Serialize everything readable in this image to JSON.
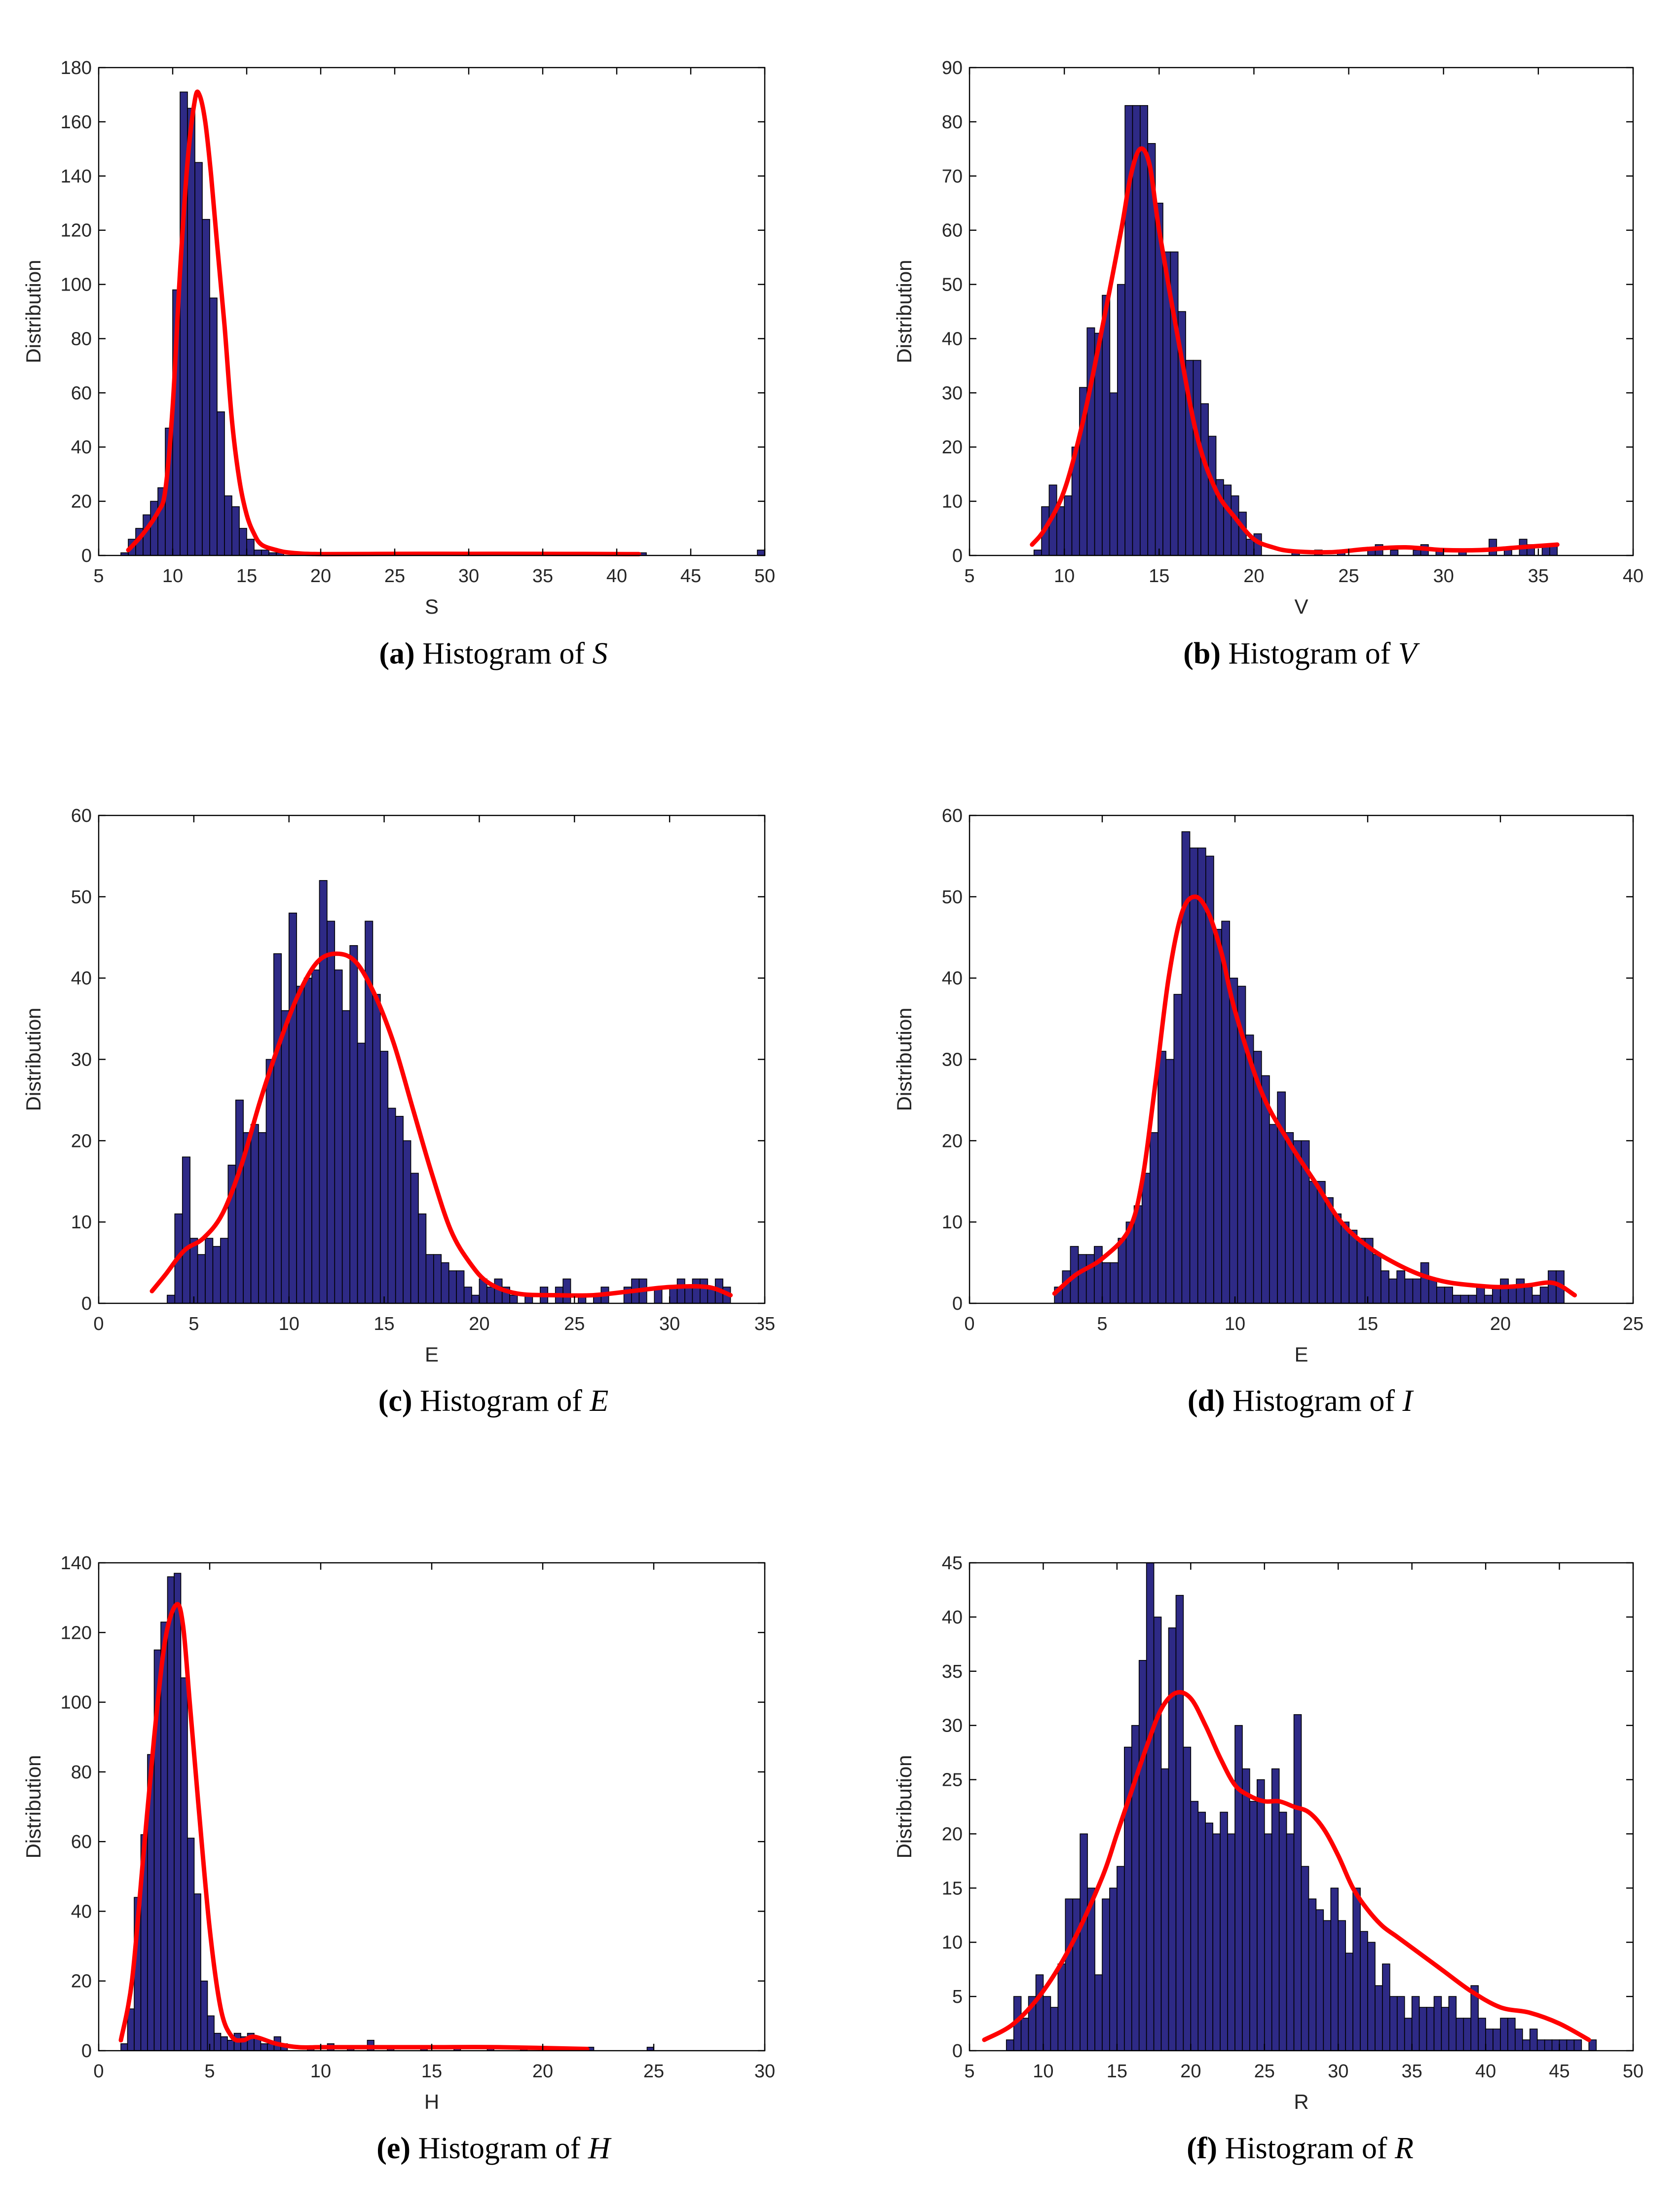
{
  "figure": {
    "bar_color": "#2E2A86",
    "bar_edge_color": "#000000",
    "curve_color": "#FF0000",
    "panel_bg": "#FFFFFF"
  },
  "chart_data": [
    {
      "id": "a",
      "type": "bar",
      "title": "",
      "xlabel": "S",
      "ylabel": "Distribution",
      "xlim": [
        5,
        50
      ],
      "ylim": [
        0,
        180
      ],
      "xticks": [
        5,
        10,
        15,
        20,
        25,
        30,
        35,
        40,
        45,
        50
      ],
      "yticks": [
        0,
        20,
        40,
        60,
        80,
        100,
        120,
        140,
        160,
        180
      ],
      "caption": {
        "label": "(a)",
        "text": "Histogram of",
        "var": "S"
      },
      "bars": {
        "bin_width": 0.5,
        "centers": [
          6.75,
          7.25,
          7.75,
          8.25,
          8.75,
          9.25,
          9.75,
          10.25,
          10.75,
          11.25,
          11.75,
          12.25,
          12.75,
          13.25,
          13.75,
          14.25,
          14.75,
          15.25,
          15.75,
          16.25,
          16.75,
          17.25,
          20.25,
          23.25,
          27.25,
          30.75,
          33.25,
          35.25,
          41.75,
          49.75
        ],
        "values": [
          1,
          6,
          10,
          15,
          20,
          25,
          47,
          98,
          171,
          165,
          145,
          124,
          95,
          53,
          22,
          18,
          10,
          6,
          2,
          2,
          1,
          1,
          1,
          1,
          1,
          1,
          1,
          1,
          1,
          2
        ]
      },
      "curve": {
        "x": [
          7,
          8,
          9,
          9.5,
          10,
          10.5,
          11,
          11.5,
          11.8,
          12.2,
          12.6,
          13,
          13.5,
          14,
          14.5,
          15,
          15.5,
          16,
          17,
          18,
          20,
          25,
          30,
          35,
          41.5
        ],
        "y": [
          2,
          8,
          16,
          24,
          55,
          105,
          145,
          168,
          170,
          160,
          140,
          115,
          85,
          50,
          28,
          15,
          8,
          4,
          2,
          1,
          0.5,
          0.6,
          0.6,
          0.6,
          0.5
        ]
      }
    },
    {
      "id": "b",
      "type": "bar",
      "title": "",
      "xlabel": "V",
      "ylabel": "Distribution",
      "xlim": [
        5,
        40
      ],
      "ylim": [
        0,
        90
      ],
      "xticks": [
        5,
        10,
        15,
        20,
        25,
        30,
        35,
        40
      ],
      "yticks": [
        0,
        10,
        20,
        30,
        40,
        50,
        60,
        70,
        80,
        90
      ],
      "caption": {
        "label": "(b)",
        "text": "Histogram of",
        "var": "V"
      },
      "bars": {
        "bin_width": 0.4,
        "centers": [
          8.6,
          9.0,
          9.4,
          9.8,
          10.2,
          10.6,
          11.0,
          11.4,
          11.8,
          12.2,
          12.6,
          13.0,
          13.4,
          13.8,
          14.2,
          14.6,
          15.0,
          15.4,
          15.8,
          16.2,
          16.6,
          17.0,
          17.4,
          17.8,
          18.2,
          18.6,
          19.0,
          19.4,
          19.8,
          20.2,
          22.2,
          23.4,
          24.6,
          26.2,
          26.6,
          27.4,
          28.6,
          29.0,
          29.8,
          31.0,
          32.6,
          33.4,
          34.2,
          34.6,
          35.4,
          35.8
        ],
        "values": [
          1,
          9,
          13,
          9,
          11,
          20,
          31,
          42,
          41,
          48,
          30,
          50,
          83,
          83,
          83,
          76,
          65,
          56,
          56,
          45,
          36,
          36,
          28,
          22,
          14,
          13,
          11,
          8,
          3,
          4,
          1,
          1,
          1,
          1,
          2,
          1,
          1,
          2,
          1,
          1,
          3,
          1,
          3,
          2,
          2,
          2
        ]
      },
      "curve": {
        "x": [
          8.3,
          9,
          10,
          11,
          12,
          13,
          13.5,
          14,
          14.5,
          15,
          16,
          17,
          18,
          19,
          20,
          21,
          22,
          24,
          26,
          28,
          30,
          32,
          34,
          36
        ],
        "y": [
          2,
          5,
          12,
          25,
          42,
          60,
          70,
          75,
          72,
          60,
          40,
          22,
          12,
          7,
          3,
          1.5,
          0.8,
          0.6,
          1.2,
          1.5,
          1,
          1,
          1.5,
          2
        ]
      }
    },
    {
      "id": "c",
      "type": "bar",
      "title": "",
      "xlabel": "E",
      "ylabel": "Distribution",
      "xlim": [
        0,
        35
      ],
      "ylim": [
        0,
        60
      ],
      "xticks": [
        0,
        5,
        10,
        15,
        20,
        25,
        30,
        35
      ],
      "yticks": [
        0,
        10,
        20,
        30,
        40,
        50,
        60
      ],
      "caption": {
        "label": "(c)",
        "text": "Histogram of",
        "var": "E"
      },
      "bars": {
        "bin_width": 0.4,
        "centers": [
          3.8,
          4.2,
          4.6,
          5.0,
          5.4,
          5.8,
          6.2,
          6.6,
          7.0,
          7.4,
          7.8,
          8.2,
          8.6,
          9.0,
          9.4,
          9.8,
          10.2,
          10.6,
          11.0,
          11.4,
          11.8,
          12.2,
          12.6,
          13.0,
          13.4,
          13.8,
          14.2,
          14.6,
          15.0,
          15.4,
          15.8,
          16.2,
          16.6,
          17.0,
          17.4,
          17.8,
          18.2,
          18.6,
          19.0,
          19.4,
          19.8,
          20.2,
          20.6,
          21.0,
          21.4,
          21.8,
          22.6,
          23.4,
          24.2,
          24.6,
          25.4,
          26.2,
          26.6,
          27.8,
          28.2,
          28.6,
          29.4,
          30.2,
          30.6,
          31.0,
          31.4,
          31.8,
          32.2,
          32.6,
          33.0
        ],
        "values": [
          1,
          11,
          18,
          8,
          6,
          8,
          7,
          8,
          17,
          25,
          21,
          22,
          21,
          30,
          43,
          36,
          48,
          39,
          40,
          41,
          52,
          47,
          41,
          36,
          44,
          32,
          47,
          38,
          31,
          24,
          23,
          20,
          16,
          11,
          6,
          6,
          5,
          4,
          4,
          2,
          1,
          3,
          2,
          3,
          2,
          1,
          1,
          2,
          2,
          3,
          1,
          1,
          2,
          2,
          3,
          3,
          2,
          2,
          3,
          2,
          3,
          3,
          2,
          3,
          2
        ]
      },
      "curve": {
        "x": [
          2.8,
          3.5,
          4.5,
          5.5,
          6.5,
          7.5,
          8.5,
          9.5,
          10.5,
          11.5,
          12.5,
          13.5,
          14.5,
          15.5,
          16.5,
          17.5,
          18.5,
          19.5,
          20.5,
          22,
          24,
          26,
          28,
          30,
          32,
          33.2
        ],
        "y": [
          1.5,
          3.5,
          6.5,
          8,
          11,
          17,
          25,
          32,
          38,
          42,
          43,
          42,
          38,
          32,
          24,
          16,
          9,
          5,
          2.5,
          1.2,
          1,
          1,
          1.5,
          2,
          2,
          1
        ]
      }
    },
    {
      "id": "d",
      "type": "bar",
      "title": "",
      "xlabel": "E",
      "ylabel": "Distribution",
      "xlim": [
        0,
        25
      ],
      "ylim": [
        0,
        60
      ],
      "xticks": [
        0,
        5,
        10,
        15,
        20,
        25
      ],
      "yticks": [
        0,
        10,
        20,
        30,
        40,
        50,
        60
      ],
      "caption": {
        "label": "(d)",
        "text": "Histogram of",
        "var": "I"
      },
      "bars": {
        "bin_width": 0.3,
        "centers": [
          3.35,
          3.65,
          3.95,
          4.25,
          4.55,
          4.85,
          5.15,
          5.45,
          5.75,
          6.05,
          6.35,
          6.65,
          6.95,
          7.25,
          7.55,
          7.85,
          8.15,
          8.45,
          8.75,
          9.05,
          9.35,
          9.65,
          9.95,
          10.25,
          10.55,
          10.85,
          11.15,
          11.45,
          11.75,
          12.05,
          12.35,
          12.65,
          12.95,
          13.25,
          13.55,
          13.85,
          14.15,
          14.45,
          14.75,
          15.05,
          15.35,
          15.65,
          15.95,
          16.25,
          16.55,
          16.85,
          17.15,
          17.45,
          17.75,
          18.05,
          18.35,
          18.65,
          18.95,
          19.25,
          19.55,
          19.85,
          20.15,
          20.45,
          20.75,
          21.05,
          21.35,
          21.65,
          21.95,
          22.25
        ],
        "values": [
          2,
          4,
          7,
          6,
          6,
          7,
          5,
          5,
          8,
          10,
          12,
          16,
          21,
          31,
          30,
          38,
          58,
          56,
          56,
          55,
          46,
          47,
          40,
          39,
          33,
          31,
          28,
          22,
          26,
          21,
          20,
          20,
          15,
          15,
          13,
          11,
          10,
          9,
          8,
          8,
          6,
          4,
          3,
          4,
          3,
          3,
          5,
          3,
          2,
          2,
          1,
          1,
          1,
          2,
          1,
          2,
          3,
          2,
          3,
          2,
          1,
          2,
          4,
          4
        ]
      },
      "curve": {
        "x": [
          3.2,
          4,
          5,
          6,
          6.5,
          7,
          7.5,
          8,
          8.5,
          9,
          9.5,
          10,
          11,
          12,
          13,
          14,
          15,
          16,
          17,
          18,
          19,
          20,
          21,
          22,
          22.8
        ],
        "y": [
          1.2,
          3.5,
          5.5,
          9,
          15,
          27,
          40,
          48,
          50,
          48,
          43,
          36,
          26,
          20,
          15,
          10,
          7,
          5,
          3.5,
          2.6,
          2.2,
          2,
          2.2,
          2.5,
          1
        ]
      }
    },
    {
      "id": "e",
      "type": "bar",
      "title": "",
      "xlabel": "H",
      "ylabel": "Distribution",
      "xlim": [
        0,
        30
      ],
      "ylim": [
        0,
        140
      ],
      "xticks": [
        0,
        5,
        10,
        15,
        20,
        25,
        30
      ],
      "yticks": [
        0,
        20,
        40,
        60,
        80,
        100,
        120,
        140
      ],
      "caption": {
        "label": "(e)",
        "text": "Histogram of",
        "var": "H"
      },
      "bars": {
        "bin_width": 0.3,
        "centers": [
          1.15,
          1.45,
          1.75,
          2.05,
          2.35,
          2.65,
          2.95,
          3.25,
          3.55,
          3.85,
          4.15,
          4.45,
          4.75,
          5.05,
          5.35,
          5.65,
          5.95,
          6.25,
          6.55,
          6.85,
          7.15,
          7.45,
          7.75,
          8.05,
          8.35,
          9.55,
          10.45,
          11.35,
          12.25,
          13.15,
          14.65,
          16.15,
          17.65,
          19.15,
          20.65,
          22.15,
          24.85
        ],
        "values": [
          2,
          12,
          44,
          62,
          85,
          115,
          123,
          136,
          137,
          107,
          61,
          45,
          20,
          10,
          5,
          4,
          3,
          5,
          4,
          5,
          4,
          2,
          2,
          4,
          2,
          1,
          2,
          1,
          3,
          1,
          1,
          1,
          1,
          1,
          1,
          1,
          1
        ]
      },
      "curve": {
        "x": [
          1,
          1.5,
          2,
          2.5,
          3,
          3.5,
          3.8,
          4.1,
          4.5,
          5,
          5.5,
          6,
          6.5,
          7,
          8,
          9,
          10,
          12,
          15,
          18,
          22
        ],
        "y": [
          3,
          20,
          55,
          90,
          118,
          128,
          122,
          100,
          70,
          35,
          12,
          4,
          3,
          4,
          2,
          1,
          1,
          1,
          1,
          1,
          0.5
        ]
      }
    },
    {
      "id": "f",
      "type": "bar",
      "title": "",
      "xlabel": "R",
      "ylabel": "Distribution",
      "xlim": [
        5,
        50
      ],
      "ylim": [
        0,
        45
      ],
      "xticks": [
        5,
        10,
        15,
        20,
        25,
        30,
        35,
        40,
        45,
        50
      ],
      "yticks": [
        0,
        5,
        10,
        15,
        20,
        25,
        30,
        35,
        40,
        45
      ],
      "caption": {
        "label": "(f)",
        "text": "Histogram of",
        "var": "R"
      },
      "bars": {
        "bin_width": 0.5,
        "centers": [
          7.75,
          8.25,
          8.75,
          9.25,
          9.75,
          10.25,
          10.75,
          11.25,
          11.75,
          12.25,
          12.75,
          13.25,
          13.75,
          14.25,
          14.75,
          15.25,
          15.75,
          16.25,
          16.75,
          17.25,
          17.75,
          18.25,
          18.75,
          19.25,
          19.75,
          20.25,
          20.75,
          21.25,
          21.75,
          22.25,
          22.75,
          23.25,
          23.75,
          24.25,
          24.75,
          25.25,
          25.75,
          26.25,
          26.75,
          27.25,
          27.75,
          28.25,
          28.75,
          29.25,
          29.75,
          30.25,
          30.75,
          31.25,
          31.75,
          32.25,
          32.75,
          33.25,
          33.75,
          34.25,
          34.75,
          35.25,
          35.75,
          36.25,
          36.75,
          37.25,
          37.75,
          38.25,
          38.75,
          39.25,
          39.75,
          40.25,
          40.75,
          41.25,
          41.75,
          42.25,
          42.75,
          43.25,
          43.75,
          44.25,
          44.75,
          45.25,
          45.75,
          46.25,
          47.25
        ],
        "values": [
          1,
          5,
          3,
          5,
          7,
          5,
          4,
          8,
          14,
          14,
          20,
          15,
          7,
          14,
          15,
          17,
          28,
          30,
          36,
          45,
          40,
          26,
          39,
          42,
          28,
          23,
          22,
          21,
          20,
          22,
          20,
          30,
          26,
          23,
          25,
          20,
          26,
          22,
          20,
          31,
          17,
          14,
          13,
          12,
          15,
          12,
          9,
          15,
          11,
          10,
          6,
          8,
          5,
          5,
          3,
          5,
          4,
          4,
          5,
          4,
          5,
          3,
          3,
          6,
          3,
          2,
          2,
          3,
          3,
          2,
          1,
          2,
          1,
          1,
          1,
          1,
          1,
          1,
          1
        ]
      },
      "curve": {
        "x": [
          6,
          8,
          10,
          12,
          14,
          15,
          16,
          17,
          18,
          19,
          20,
          21,
          22,
          23,
          24,
          25,
          26,
          27,
          28,
          29,
          30,
          31,
          32,
          33,
          34,
          35,
          37,
          39,
          41,
          43,
          45,
          47
        ],
        "y": [
          1,
          2.5,
          5.5,
          10,
          16,
          20,
          24,
          28,
          31.5,
          33,
          32.5,
          30,
          27,
          24.5,
          23.5,
          23,
          23,
          22.5,
          22,
          20.5,
          18,
          15,
          13,
          11.5,
          10.5,
          9.5,
          7.5,
          5.5,
          4,
          3.5,
          2.5,
          1
        ]
      }
    }
  ]
}
